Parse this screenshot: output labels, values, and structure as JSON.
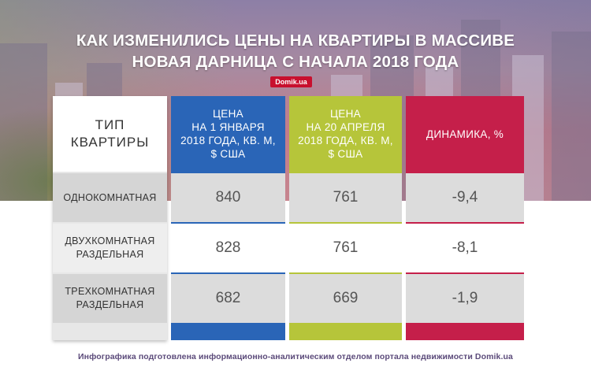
{
  "header": {
    "title_line1": "КАК ИЗМЕНИЛИСЬ ЦЕНЫ НА КВАРТИРЫ В МАССИВЕ",
    "title_line2": "НОВАЯ ДАРНИЦА С НАЧАЛА 2018 ГОДА",
    "badge": "Domik.ua"
  },
  "table": {
    "columns": [
      "ТИП\nКВАРТИРЫ",
      "ЦЕНА\nНА 1 ЯНВАРЯ\n2018 ГОДА, КВ. М,\n$ США",
      "ЦЕНА\nНА 20 АПРЕЛЯ\n2018 ГОДА, КВ. М,\n$ США",
      "ДИНАМИКА, %"
    ],
    "rows": [
      {
        "type": "ОДНОКОМНАТНАЯ",
        "jan": "840",
        "apr": "761",
        "change": "-9,4"
      },
      {
        "type": "ДВУХКОМНАТНАЯ\nРАЗДЕЛЬНАЯ",
        "jan": "828",
        "apr": "761",
        "change": "-8,1"
      },
      {
        "type": "ТРЕХКОМНАТНАЯ\nРАЗДЕЛЬНАЯ",
        "jan": "682",
        "apr": "669",
        "change": "-1,9"
      }
    ]
  },
  "footer": {
    "text": "Инфографика подготовлена информационно-аналитическим отделом портала недвижимости Domik.ua"
  },
  "colors": {
    "blue": "#2a65b7",
    "green": "#b6c53a",
    "red": "#c51f4a",
    "badge": "#c8102e",
    "footer_text": "#5b4a7a"
  }
}
